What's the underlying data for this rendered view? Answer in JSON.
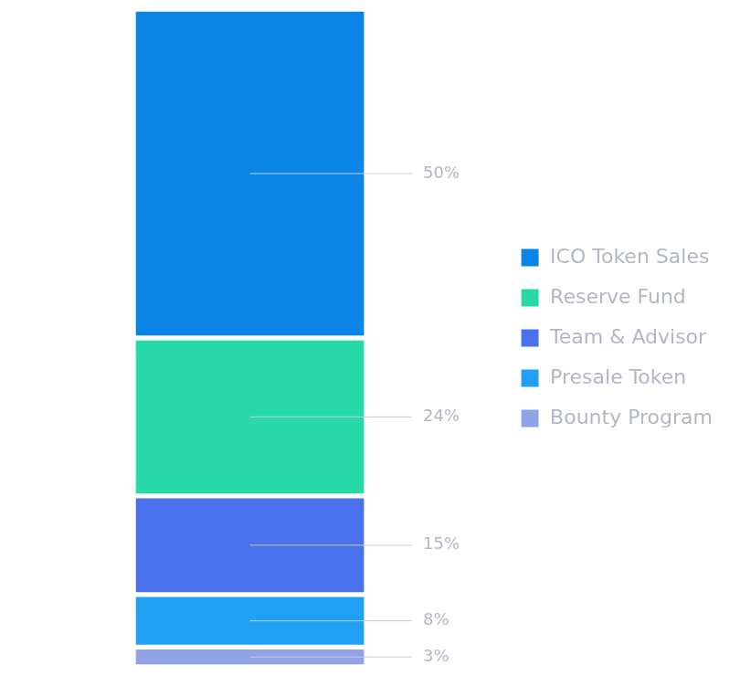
{
  "chart_data": {
    "type": "bar",
    "stacked": true,
    "categories": [
      null
    ],
    "series": [
      {
        "name": "ICO Token Sales",
        "color": "#0a84e6",
        "values": [
          50
        ],
        "value_labels": [
          "50%"
        ]
      },
      {
        "name": "Reserve Fund",
        "color": "#26d9a6",
        "values": [
          24
        ],
        "value_labels": [
          "24%"
        ]
      },
      {
        "name": "Team & Advisor",
        "color": "#4a72ef",
        "values": [
          15
        ],
        "value_labels": [
          "15%"
        ]
      },
      {
        "name": "Presale Token",
        "color": "#1fa0f5",
        "values": [
          8
        ],
        "value_labels": [
          "8%"
        ]
      },
      {
        "name": "Bounty Program",
        "color": "#8fa3e6",
        "values": [
          3
        ],
        "value_labels": [
          "3%"
        ]
      }
    ],
    "data_labels": true,
    "legend": "right",
    "tick_labels": false,
    "grid": false
  }
}
